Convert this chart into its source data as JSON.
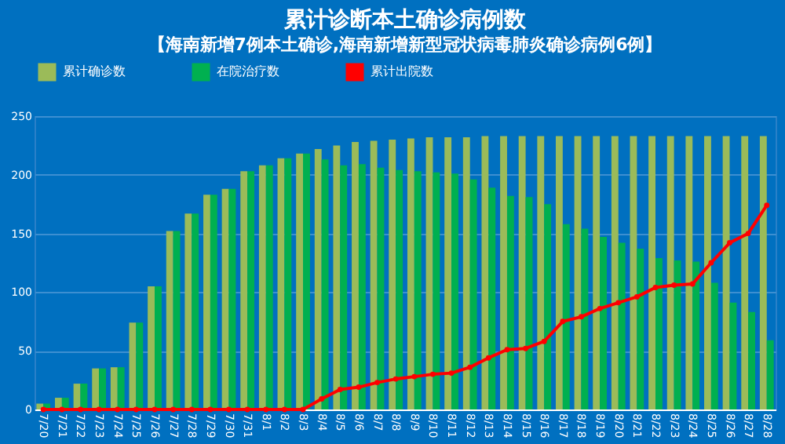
{
  "chart_data": {
    "type": "bar",
    "title": "累计诊断本土确诊病例数",
    "categories": [
      "7/20",
      "7/21",
      "7/22",
      "7/23",
      "7/24",
      "7/25",
      "7/26",
      "7/27",
      "7/28",
      "7/29",
      "7/30",
      "7/31",
      "8/1",
      "8/2",
      "8/3",
      "8/4",
      "8/5",
      "8/6",
      "8/7",
      "8/8",
      "8/9",
      "8/10",
      "8/11",
      "8/12",
      "8/13",
      "8/14",
      "8/15",
      "8/16",
      "8/17",
      "8/18",
      "8/19",
      "8/20",
      "8/21",
      "8/22",
      "8/23",
      "8/24",
      "8/25",
      "8/26",
      "8/27",
      "8/28"
    ],
    "series": [
      {
        "name": "累计确诊数",
        "type": "bar",
        "color": "#9bbb59",
        "values": [
          5,
          10,
          22,
          35,
          36,
          74,
          105,
          152,
          167,
          183,
          188,
          203,
          208,
          214,
          218,
          222,
          225,
          228,
          229,
          230,
          231,
          232,
          232,
          232,
          233,
          233,
          233,
          233,
          233,
          233,
          233,
          233,
          233,
          233,
          233,
          233,
          233,
          233,
          233,
          233
        ]
      },
      {
        "name": "在院治疗数",
        "type": "bar",
        "color": "#00b050",
        "values": [
          5,
          10,
          22,
          35,
          36,
          74,
          105,
          152,
          167,
          183,
          188,
          203,
          208,
          214,
          218,
          213,
          208,
          209,
          206,
          204,
          203,
          202,
          201,
          196,
          189,
          182,
          181,
          175,
          158,
          154,
          147,
          142,
          137,
          129,
          127,
          126,
          108,
          91,
          83,
          59
        ]
      },
      {
        "name": "累计出院数",
        "type": "line",
        "color": "#ff0000",
        "marker": "circle",
        "values": [
          0,
          0,
          0,
          0,
          0,
          0,
          0,
          0,
          0,
          0,
          0,
          0,
          0,
          0,
          0,
          9,
          17,
          19,
          23,
          26,
          28,
          30,
          31,
          36,
          44,
          51,
          52,
          58,
          75,
          79,
          86,
          91,
          96,
          104,
          106,
          107,
          125,
          142,
          150,
          174
        ]
      }
    ],
    "ylim": [
      0,
      250
    ],
    "yticks": [
      0,
      50,
      100,
      150,
      200,
      250
    ],
    "grid": "y",
    "legend": "top",
    "annotations": [
      "【海南新增7例本土确诊,海南新增新型冠状病毒肺炎确诊病例6例】"
    ]
  }
}
